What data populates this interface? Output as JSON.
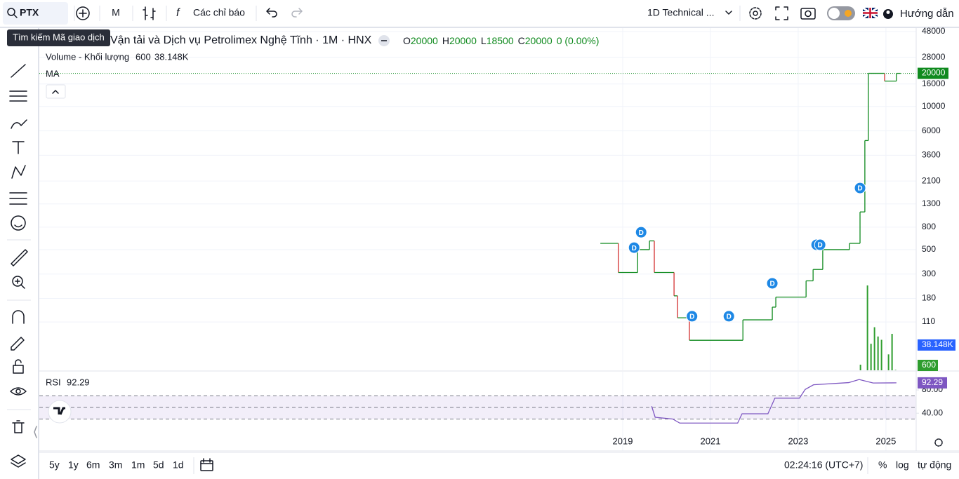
{
  "toolbar": {
    "symbol": "PTX",
    "interval": "M",
    "indicators": "Các chỉ báo",
    "layout": "1D Technical ...",
    "help": "Hướng dẫn",
    "search_tooltip": "Tìm kiếm Mã giao dịch"
  },
  "legend": {
    "name": "Vận tải và Dịch vụ Petrolimex Nghệ Tĩnh · 1M · HNX",
    "ohlc": {
      "o_label": "O",
      "o": 20000,
      "h_label": "H",
      "h": 20000,
      "l_label": "L",
      "l": 18500,
      "c_label": "C",
      "c": 20000,
      "change": "0 (0.00%)"
    },
    "volume_title": "Volume - Khối lượng",
    "ma": "MA",
    "rsi_title": "RSI"
  },
  "chart_data": [
    {
      "type": "step-line",
      "log_scale": true,
      "grid": true,
      "xlim": [
        2005.7,
        2025.69
      ],
      "xticks": [
        2019,
        2021,
        2023,
        2025
      ],
      "ylim": [
        40,
        51600
      ],
      "yticks": [
        48000,
        28000,
        16000,
        10000,
        6000,
        3600,
        2100,
        1300,
        800,
        500,
        300,
        180,
        110
      ],
      "x": [
        2018.49,
        2018.9,
        2019.34,
        2019.61,
        2019.72,
        2020.17,
        2020.25,
        2020.52,
        2021.74,
        2022.41,
        2022.49,
        2023.18,
        2023.34,
        2023.56,
        2024.17,
        2024.41,
        2024.52,
        2024.6,
        2024.97,
        2025.24
      ],
      "series": [
        {
          "color": "#0f8a1e",
          "down_color": "#d32f2f",
          "values": [
            570,
            310,
            500,
            600,
            310,
            190,
            120,
            75,
            115,
            150,
            185,
            260,
            330,
            500,
            570,
            1100,
            4900,
            20000,
            17000,
            20000
          ]
        }
      ],
      "last_price": 20000,
      "last_price_color": "#0f8a1e",
      "markers": {
        "label": "D",
        "color": "#1e88e5",
        "x": [
          2019.42,
          2019.26,
          2020.58,
          2021.42,
          2022.41,
          2023.42,
          2023.5,
          2024.41
        ],
        "values": [
          719,
          521,
          124,
          124,
          247,
          553,
          553,
          1815
        ]
      }
    },
    {
      "type": "bar",
      "color": "#2e9d2e",
      "x": [
        2024.42,
        2024.58,
        2024.66,
        2024.74,
        2024.82,
        2024.9,
        2025.06,
        2025.14,
        2025.22
      ],
      "values": [
        8500,
        128000,
        40000,
        65000,
        51000,
        46000,
        24000,
        55000,
        600
      ],
      "ylim": [
        0,
        146000
      ],
      "last_value": 600,
      "ma_value": 38148,
      "ma_label": "38.148K",
      "ma_color": "#2962ff"
    },
    {
      "type": "line",
      "color": "#7e57c2",
      "x": [
        2019.66,
        2019.74,
        2020.14,
        2020.3,
        2021.62,
        2021.72,
        2022.31,
        2022.47,
        2023.03,
        2023.16,
        2023.35,
        2024.15,
        2024.39,
        2024.71,
        2025.24
      ],
      "values": [
        52,
        33,
        30,
        23,
        23,
        39,
        39,
        66,
        66,
        81,
        89,
        92.7,
        98,
        92,
        92.29
      ],
      "ylim": [
        -25,
        111.5
      ],
      "yticks": [
        {
          "value": 80,
          "label": "80.00"
        },
        {
          "value": 40,
          "label": "40.00"
        }
      ],
      "bands": [
        70,
        50,
        30
      ],
      "last_value": 92.29
    }
  ],
  "time_axis": {
    "ranges": [
      "5y",
      "1y",
      "6m",
      "3m",
      "1m",
      "5d",
      "1d"
    ],
    "clock": "02:24:16 (UTC+7)",
    "percent": "%",
    "log": "log",
    "auto": "tự động"
  }
}
